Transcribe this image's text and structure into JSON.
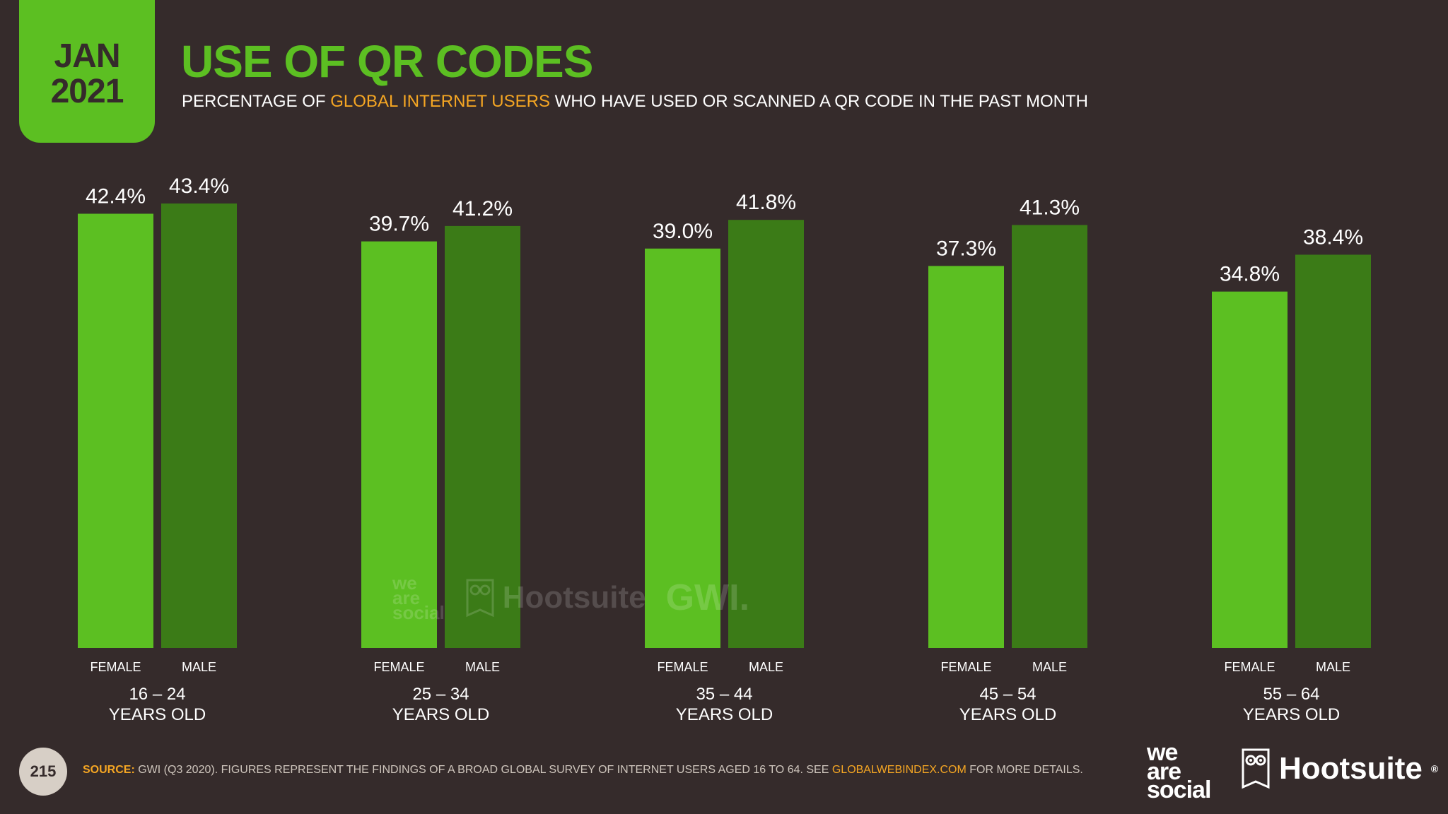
{
  "header": {
    "month": "JAN",
    "year": "2021",
    "title": "USE OF QR CODES",
    "subtitle_pre": "PERCENTAGE OF ",
    "subtitle_highlight": "GLOBAL INTERNET USERS",
    "subtitle_post": " WHO HAVE USED OR SCANNED A QR CODE IN THE PAST MONTH"
  },
  "colors": {
    "background": "#352b2b",
    "female": "#5cbf22",
    "male": "#3b7b17",
    "accent": "#f5a623"
  },
  "chart_data": {
    "type": "bar",
    "categories": [
      {
        "line1": "16 – 24",
        "line2": "YEARS OLD"
      },
      {
        "line1": "25 – 34",
        "line2": "YEARS OLD"
      },
      {
        "line1": "35 – 44",
        "line2": "YEARS OLD"
      },
      {
        "line1": "45 – 54",
        "line2": "YEARS OLD"
      },
      {
        "line1": "55 – 64",
        "line2": "YEARS OLD"
      }
    ],
    "series": [
      {
        "name": "FEMALE",
        "values": [
          42.4,
          39.7,
          39.0,
          37.3,
          34.8
        ],
        "labels": [
          "42.4%",
          "39.7%",
          "39.0%",
          "37.3%",
          "34.8%"
        ]
      },
      {
        "name": "MALE",
        "values": [
          43.4,
          41.2,
          41.8,
          41.3,
          38.4
        ],
        "labels": [
          "43.4%",
          "41.2%",
          "41.8%",
          "41.3%",
          "38.4%"
        ]
      }
    ],
    "ylim": [
      0,
      43.4
    ],
    "grid": false,
    "legend": "none"
  },
  "watermark": {
    "was_line1": "we",
    "was_line2": "are",
    "was_line3": "social",
    "hootsuite": "Hootsuite",
    "gwi": "GWI."
  },
  "footer": {
    "page_number": "215",
    "source_label": "SOURCE:",
    "source_text": " GWI (Q3 2020). FIGURES REPRESENT THE FINDINGS OF A BROAD GLOBAL SURVEY OF INTERNET USERS AGED 16 TO 64. SEE ",
    "source_link": "GLOBALWEBINDEX.COM",
    "source_end": " FOR MORE DETAILS.",
    "logo_was_line1": "we",
    "logo_was_line2": "are",
    "logo_was_line3": "social",
    "logo_hootsuite": "Hootsuite",
    "logo_registered": "®"
  }
}
